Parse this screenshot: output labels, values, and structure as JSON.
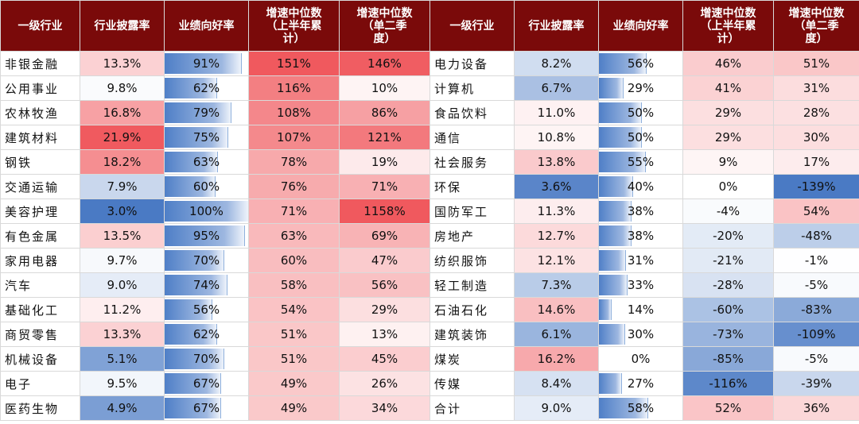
{
  "headers": [
    "一级行业",
    "行业披露率",
    "业绩向好率",
    "增速中位数（上半年累计）",
    "增速中位数（单二季度）",
    "一级行业",
    "行业披露率",
    "业绩向好率",
    "增速中位数（上半年累计）",
    "增速中位数（单二季度）"
  ],
  "header_lines": [
    [
      "一级行业"
    ],
    [
      "行业披露率"
    ],
    [
      "业绩向好率"
    ],
    [
      "增速中位数",
      "（上半年累",
      "计）"
    ],
    [
      "增速中位数",
      "（单二季",
      "度）"
    ],
    [
      "一级行业"
    ],
    [
      "行业披露率"
    ],
    [
      "业绩向好率"
    ],
    [
      "增速中位数",
      "（上半年累",
      "计）"
    ],
    [
      "增速中位数",
      "（单二季",
      "度）"
    ]
  ],
  "left_rows": [
    {
      "industry": "非银金融",
      "disclosure": "13.3%",
      "positive": "91%",
      "h1": "151%",
      "q2": "146%"
    },
    {
      "industry": "公用事业",
      "disclosure": "9.8%",
      "positive": "62%",
      "h1": "116%",
      "q2": "10%"
    },
    {
      "industry": "农林牧渔",
      "disclosure": "16.8%",
      "positive": "79%",
      "h1": "108%",
      "q2": "86%"
    },
    {
      "industry": "建筑材料",
      "disclosure": "21.9%",
      "positive": "75%",
      "h1": "107%",
      "q2": "121%"
    },
    {
      "industry": "钢铁",
      "disclosure": "18.2%",
      "positive": "63%",
      "h1": "78%",
      "q2": "19%"
    },
    {
      "industry": "交通运输",
      "disclosure": "7.9%",
      "positive": "60%",
      "h1": "76%",
      "q2": "71%"
    },
    {
      "industry": "美容护理",
      "disclosure": "3.0%",
      "positive": "100%",
      "h1": "71%",
      "q2": "1158%"
    },
    {
      "industry": "有色金属",
      "disclosure": "13.5%",
      "positive": "95%",
      "h1": "63%",
      "q2": "69%"
    },
    {
      "industry": "家用电器",
      "disclosure": "9.7%",
      "positive": "70%",
      "h1": "60%",
      "q2": "47%"
    },
    {
      "industry": "汽车",
      "disclosure": "9.0%",
      "positive": "74%",
      "h1": "58%",
      "q2": "56%"
    },
    {
      "industry": "基础化工",
      "disclosure": "11.2%",
      "positive": "56%",
      "h1": "54%",
      "q2": "29%"
    },
    {
      "industry": "商贸零售",
      "disclosure": "13.3%",
      "positive": "62%",
      "h1": "51%",
      "q2": "13%"
    },
    {
      "industry": "机械设备",
      "disclosure": "5.1%",
      "positive": "70%",
      "h1": "51%",
      "q2": "45%"
    },
    {
      "industry": "电子",
      "disclosure": "9.5%",
      "positive": "67%",
      "h1": "49%",
      "q2": "26%"
    },
    {
      "industry": "医药生物",
      "disclosure": "4.9%",
      "positive": "67%",
      "h1": "49%",
      "q2": "34%"
    }
  ],
  "right_rows": [
    {
      "industry": "电力设备",
      "disclosure": "8.2%",
      "positive": "56%",
      "h1": "46%",
      "q2": "51%"
    },
    {
      "industry": "计算机",
      "disclosure": "6.7%",
      "positive": "29%",
      "h1": "41%",
      "q2": "31%"
    },
    {
      "industry": "食品饮料",
      "disclosure": "11.0%",
      "positive": "50%",
      "h1": "29%",
      "q2": "28%"
    },
    {
      "industry": "通信",
      "disclosure": "10.8%",
      "positive": "50%",
      "h1": "29%",
      "q2": "30%"
    },
    {
      "industry": "社会服务",
      "disclosure": "13.8%",
      "positive": "55%",
      "h1": "9%",
      "q2": "17%"
    },
    {
      "industry": "环保",
      "disclosure": "3.6%",
      "positive": "40%",
      "h1": "0%",
      "q2": "-139%"
    },
    {
      "industry": "国防军工",
      "disclosure": "11.3%",
      "positive": "38%",
      "h1": "-4%",
      "q2": "54%"
    },
    {
      "industry": "房地产",
      "disclosure": "12.7%",
      "positive": "38%",
      "h1": "-20%",
      "q2": "-48%"
    },
    {
      "industry": "纺织服饰",
      "disclosure": "12.1%",
      "positive": "31%",
      "h1": "-21%",
      "q2": "-1%"
    },
    {
      "industry": "轻工制造",
      "disclosure": "7.3%",
      "positive": "33%",
      "h1": "-28%",
      "q2": "-5%"
    },
    {
      "industry": "石油石化",
      "disclosure": "14.6%",
      "positive": "14%",
      "h1": "-60%",
      "q2": "-83%"
    },
    {
      "industry": "建筑装饰",
      "disclosure": "6.1%",
      "positive": "30%",
      "h1": "-73%",
      "q2": "-109%"
    },
    {
      "industry": "煤炭",
      "disclosure": "16.2%",
      "positive": "0%",
      "h1": "-85%",
      "q2": "-5%"
    },
    {
      "industry": "传媒",
      "disclosure": "8.4%",
      "positive": "27%",
      "h1": "-116%",
      "q2": "-39%"
    },
    {
      "industry": "合计",
      "disclosure": "9.0%",
      "positive": "58%",
      "h1": "52%",
      "q2": "36%"
    }
  ],
  "colors": {
    "header_bg": "#7a0a0a",
    "header_text": "#ffffff",
    "positive_high": "#f0595e",
    "negative_high": "#4a7ac4",
    "bar": "#6f98d4"
  }
}
